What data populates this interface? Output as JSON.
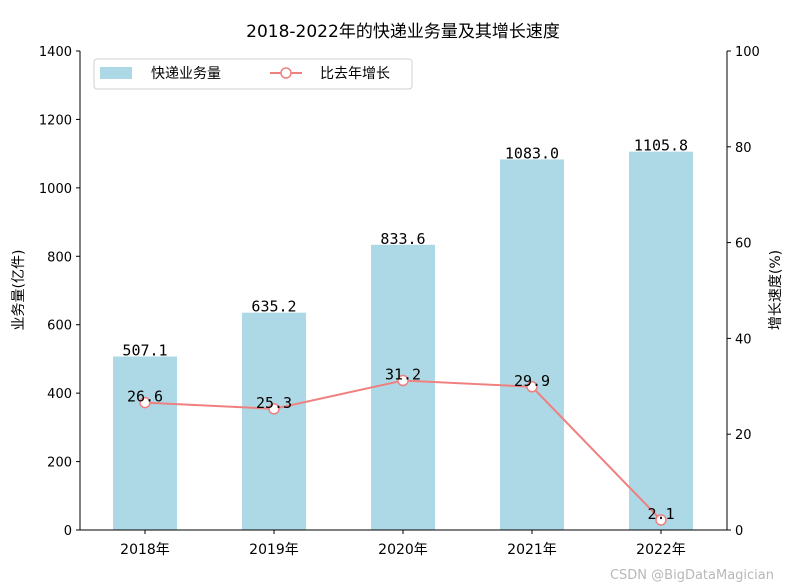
{
  "chart_data": {
    "type": "bar",
    "title": "2018-2022年的快递业务量及其增长速度",
    "categories": [
      "2018年",
      "2019年",
      "2020年",
      "2021年",
      "2022年"
    ],
    "series": [
      {
        "name": "快递业务量",
        "type": "bar",
        "axis": "left",
        "color": "#add8e6",
        "values": [
          507.1,
          635.2,
          833.6,
          1083.0,
          1105.8
        ],
        "labels": [
          "507.1",
          "635.2",
          "833.6",
          "1083.0",
          "1105.8"
        ]
      },
      {
        "name": "比去年增长",
        "type": "line",
        "axis": "right",
        "color": "#f08080",
        "values": [
          26.6,
          25.3,
          31.2,
          29.9,
          2.1
        ],
        "labels": [
          "26.6",
          "25.3",
          "31.2",
          "29.9",
          "2.1"
        ]
      }
    ],
    "ylabel": "业务量(亿件)",
    "ylim": [
      0,
      1400
    ],
    "yticks": [
      "0",
      "200",
      "400",
      "600",
      "800",
      "1000",
      "1200",
      "1400"
    ],
    "y2label": "增长速度(%)",
    "y2lim": [
      0,
      100
    ],
    "y2ticks": [
      "0",
      "20",
      "40",
      "60",
      "80",
      "100"
    ],
    "grid": false,
    "legend_position": "top-left"
  },
  "watermark": "CSDN @BigDataMagician"
}
